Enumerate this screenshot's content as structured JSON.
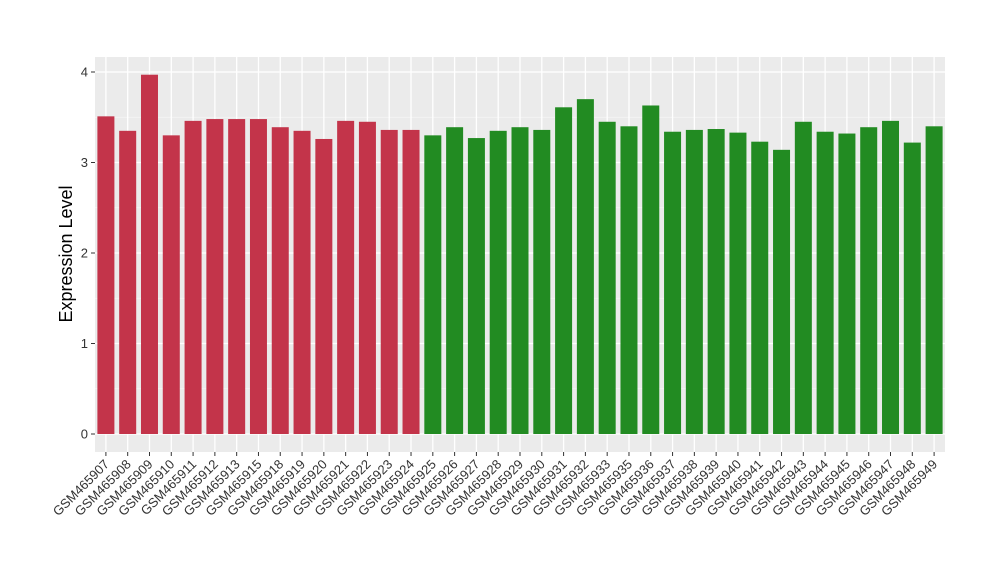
{
  "chart_data": {
    "type": "bar",
    "title": "",
    "xlabel": "",
    "ylabel": "Expression Level",
    "ylim": [
      -0.18,
      4.17
    ],
    "yticks": [
      0,
      1,
      2,
      3,
      4
    ],
    "grid": true,
    "legend": "none",
    "colors": {
      "group1": "#C3344A",
      "group2": "#228B22",
      "panel": "#EBEBEB",
      "grid": "#FFFFFF"
    },
    "categories": [
      "GSM465907",
      "GSM465908",
      "GSM465909",
      "GSM465910",
      "GSM465911",
      "GSM465912",
      "GSM465913",
      "GSM465915",
      "GSM465918",
      "GSM465919",
      "GSM465920",
      "GSM465921",
      "GSM465922",
      "GSM465923",
      "GSM465924",
      "GSM465925",
      "GSM465926",
      "GSM465927",
      "GSM465928",
      "GSM465929",
      "GSM465930",
      "GSM465931",
      "GSM465932",
      "GSM465933",
      "GSM465935",
      "GSM465936",
      "GSM465937",
      "GSM465938",
      "GSM465939",
      "GSM465940",
      "GSM465941",
      "GSM465942",
      "GSM465943",
      "GSM465944",
      "GSM465945",
      "GSM465946",
      "GSM465947",
      "GSM465948",
      "GSM465949"
    ],
    "values": [
      3.51,
      3.35,
      3.97,
      3.3,
      3.46,
      3.48,
      3.48,
      3.48,
      3.39,
      3.35,
      3.26,
      3.46,
      3.45,
      3.36,
      3.36,
      3.3,
      3.39,
      3.27,
      3.35,
      3.39,
      3.36,
      3.61,
      3.7,
      3.45,
      3.4,
      3.63,
      3.34,
      3.36,
      3.37,
      3.33,
      3.23,
      3.14,
      3.45,
      3.34,
      3.32,
      3.39,
      3.46,
      3.22,
      3.4
    ],
    "groups": [
      1,
      1,
      1,
      1,
      1,
      1,
      1,
      1,
      1,
      1,
      1,
      1,
      1,
      1,
      1,
      2,
      2,
      2,
      2,
      2,
      2,
      2,
      2,
      2,
      2,
      2,
      2,
      2,
      2,
      2,
      2,
      2,
      2,
      2,
      2,
      2,
      2,
      2,
      2
    ]
  }
}
